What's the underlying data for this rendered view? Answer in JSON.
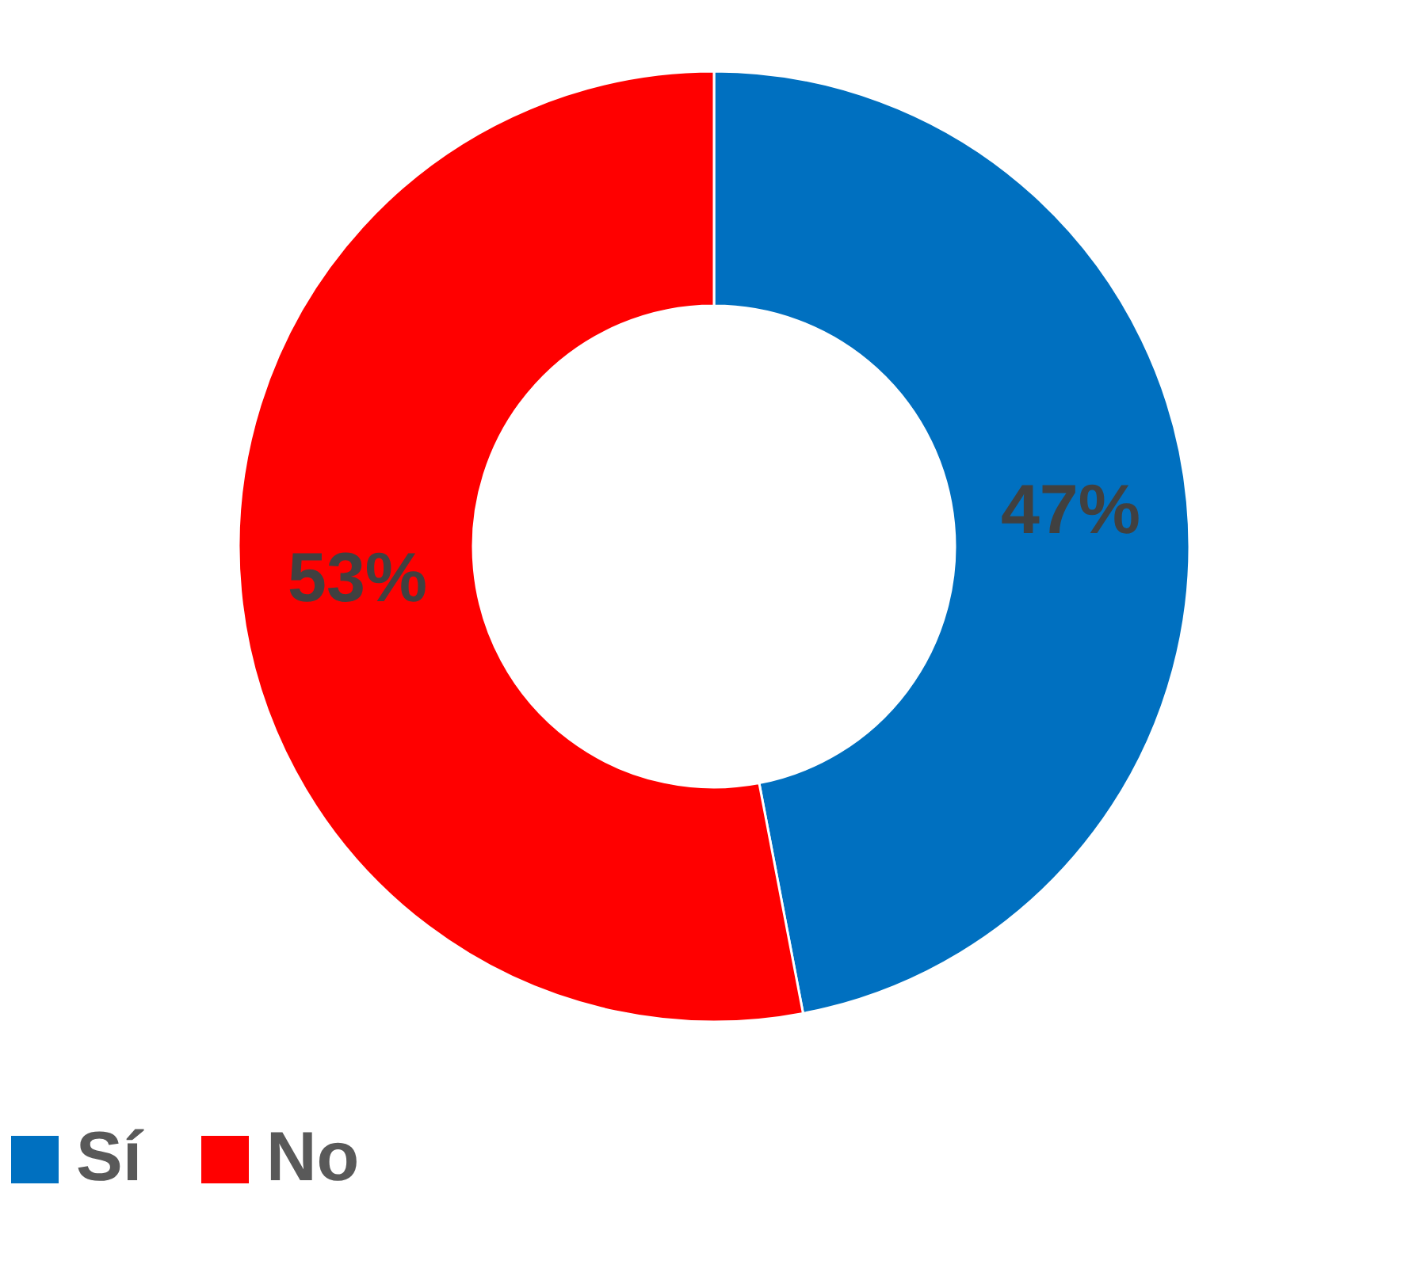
{
  "chart_data": {
    "type": "donut",
    "categories": [
      "Sí",
      "No"
    ],
    "values": [
      47,
      53
    ],
    "colors": [
      "#0070c0",
      "#ff0000"
    ],
    "value_labels": [
      "47%",
      "53%"
    ],
    "legend": "bottom"
  }
}
